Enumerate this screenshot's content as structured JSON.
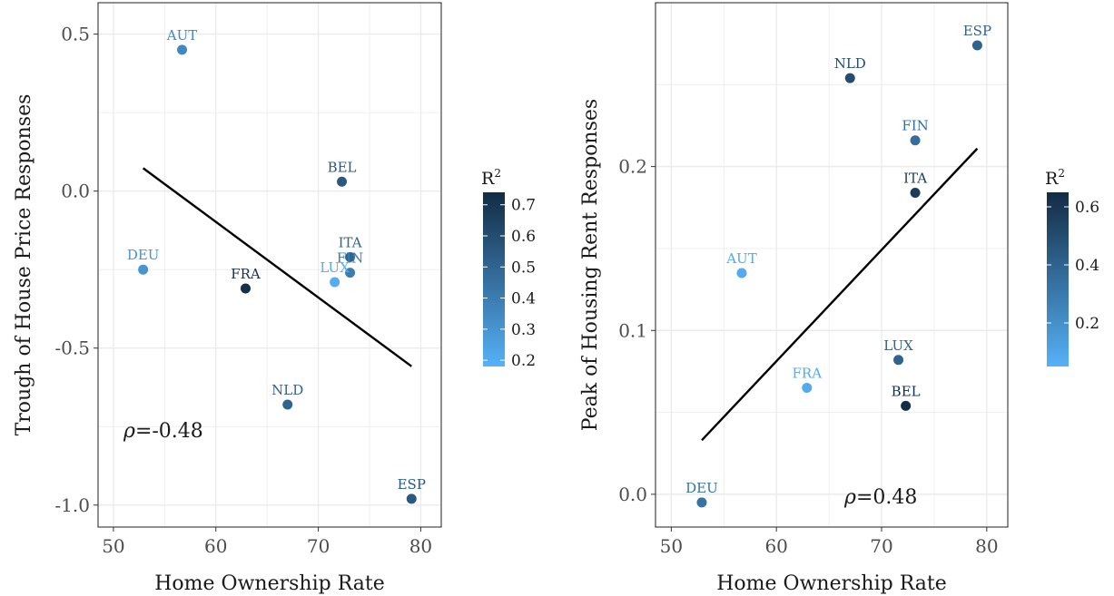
{
  "chart_data": [
    {
      "type": "scatter",
      "xlabel": "Home Ownership Rate",
      "ylabel": "Trough of House Price Responses",
      "xlim": [
        48.5,
        82
      ],
      "ylim": [
        -1.07,
        0.6
      ],
      "x_ticks": [
        50,
        60,
        70,
        80
      ],
      "y_ticks": [
        0.5,
        0.0,
        -0.5,
        -1.0
      ],
      "y_tick_labels": [
        "0.5",
        "0.0",
        "-0.5",
        "-1.0"
      ],
      "grid": true,
      "points": [
        {
          "label": "AUT",
          "x": 56.7,
          "y": 0.45,
          "r2": 0.35
        },
        {
          "label": "BEL",
          "x": 72.3,
          "y": 0.03,
          "r2": 0.55
        },
        {
          "label": "DEU",
          "x": 52.9,
          "y": -0.25,
          "r2": 0.3
        },
        {
          "label": "FRA",
          "x": 62.9,
          "y": -0.31,
          "r2": 0.72
        },
        {
          "label": "ITA",
          "x": 73.1,
          "y": -0.21,
          "r2": 0.5
        },
        {
          "label": "FIN",
          "x": 73.1,
          "y": -0.26,
          "r2": 0.4
        },
        {
          "label": "LUX",
          "x": 71.6,
          "y": -0.29,
          "r2": 0.2
        },
        {
          "label": "NLD",
          "x": 67.0,
          "y": -0.68,
          "r2": 0.5
        },
        {
          "label": "ESP",
          "x": 79.1,
          "y": -0.98,
          "r2": 0.55
        }
      ],
      "fit_line": {
        "x": [
          52.9,
          79.1
        ],
        "y": [
          0.073,
          -0.558
        ]
      },
      "annotation_symbol": "ρ",
      "annotation_value": "=-0.48",
      "legend": {
        "title_base": "R",
        "title_sup": "2",
        "position": "right",
        "range": [
          0.18,
          0.74
        ],
        "ticks": [
          0.7,
          0.6,
          0.5,
          0.4,
          0.3,
          0.2
        ],
        "tick_labels": [
          "0.7",
          "0.6",
          "0.5",
          "0.4",
          "0.3",
          "0.2"
        ]
      }
    },
    {
      "type": "scatter",
      "xlabel": "Home Ownership Rate",
      "ylabel": "Peak of Housing Rent Responses",
      "xlim": [
        48.5,
        82
      ],
      "ylim": [
        -0.02,
        0.3
      ],
      "x_ticks": [
        50,
        60,
        70,
        80
      ],
      "y_ticks": [
        0.2,
        0.1,
        0.0
      ],
      "y_tick_labels": [
        "0.2",
        "0.1",
        "0.0"
      ],
      "grid": true,
      "points": [
        {
          "label": "ESP",
          "x": 79.1,
          "y": 0.274,
          "r2": 0.4
        },
        {
          "label": "NLD",
          "x": 67.0,
          "y": 0.254,
          "r2": 0.5
        },
        {
          "label": "FIN",
          "x": 73.2,
          "y": 0.216,
          "r2": 0.35
        },
        {
          "label": "ITA",
          "x": 73.2,
          "y": 0.184,
          "r2": 0.58
        },
        {
          "label": "AUT",
          "x": 56.7,
          "y": 0.135,
          "r2": 0.08
        },
        {
          "label": "LUX",
          "x": 71.6,
          "y": 0.082,
          "r2": 0.4
        },
        {
          "label": "FRA",
          "x": 62.9,
          "y": 0.065,
          "r2": 0.08
        },
        {
          "label": "BEL",
          "x": 72.3,
          "y": 0.054,
          "r2": 0.64
        },
        {
          "label": "DEU",
          "x": 52.9,
          "y": -0.005,
          "r2": 0.33
        }
      ],
      "fit_line": {
        "x": [
          52.9,
          79.1
        ],
        "y": [
          0.033,
          0.211
        ]
      },
      "annotation_symbol": "ρ",
      "annotation_value": "=0.48",
      "legend": {
        "title_base": "R",
        "title_sup": "2",
        "position": "right",
        "range": [
          0.05,
          0.65
        ],
        "ticks": [
          0.6,
          0.4,
          0.2
        ],
        "tick_labels": [
          "0.6",
          "0.4",
          "0.2"
        ]
      }
    }
  ],
  "colors": {
    "low": "#56B1F7",
    "high": "#132B43",
    "fit_line": "#000000",
    "grid": "#ebebeb",
    "panel_border": "#333333"
  }
}
